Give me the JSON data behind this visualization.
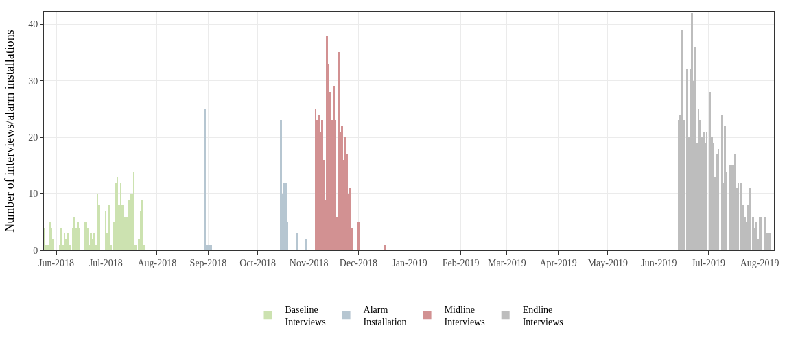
{
  "chart_data": {
    "type": "bar",
    "ylabel": "Number of interviews/alarm installations",
    "ylim": [
      0,
      42.2
    ],
    "yticks": [
      0,
      10,
      20,
      30,
      40
    ],
    "xlim": [
      "2018-05-24T12:00",
      "2019-08-09T16:00"
    ],
    "xticks": [
      {
        "value": "2018-06",
        "label": "Jun-2018"
      },
      {
        "value": "2018-07",
        "label": "Jul-2018"
      },
      {
        "value": "2018-08",
        "label": "Aug-2018"
      },
      {
        "value": "2018-09",
        "label": "Sep-2018"
      },
      {
        "value": "2018-10",
        "label": "Oct-2018"
      },
      {
        "value": "2018-11",
        "label": "Nov-2018"
      },
      {
        "value": "2018-12",
        "label": "Dec-2018"
      },
      {
        "value": "2019-01",
        "label": "Jan-2019"
      },
      {
        "value": "2019-02",
        "label": "Feb-2019"
      },
      {
        "value": "2019-03",
        "label": "Mar-2019"
      },
      {
        "value": "2019-04",
        "label": "Apr-2019"
      },
      {
        "value": "2019-05",
        "label": "May-2019"
      },
      {
        "value": "2019-06",
        "label": "Jun-2019"
      },
      {
        "value": "2019-07",
        "label": "Jul-2019"
      },
      {
        "value": "2019-08",
        "label": "Aug-2019"
      }
    ],
    "grid": true,
    "legend": "bottom",
    "series": [
      {
        "name": "Baseline Interviews",
        "color": "#cce2b0",
        "x": [
          "2018-05-25",
          "2018-05-26",
          "2018-05-27",
          "2018-05-28",
          "2018-05-29",
          "2018-05-30",
          "2018-06-03",
          "2018-06-04",
          "2018-06-05",
          "2018-06-06",
          "2018-06-07",
          "2018-06-08",
          "2018-06-09",
          "2018-06-11",
          "2018-06-12",
          "2018-06-13",
          "2018-06-14",
          "2018-06-15",
          "2018-06-18",
          "2018-06-19",
          "2018-06-20",
          "2018-06-21",
          "2018-06-22",
          "2018-06-23",
          "2018-06-24",
          "2018-06-25",
          "2018-06-26",
          "2018-06-27",
          "2018-07-01",
          "2018-07-02",
          "2018-07-03",
          "2018-07-04",
          "2018-07-06",
          "2018-07-07",
          "2018-07-08",
          "2018-07-09",
          "2018-07-10",
          "2018-07-11",
          "2018-07-12",
          "2018-07-13",
          "2018-07-14",
          "2018-07-15",
          "2018-07-16",
          "2018-07-17",
          "2018-07-18",
          "2018-07-19",
          "2018-07-21",
          "2018-07-22",
          "2018-07-23",
          "2018-07-24"
        ],
        "values": [
          4,
          1,
          1,
          5,
          4,
          2,
          1,
          4,
          1,
          3,
          2,
          3,
          1,
          4,
          6,
          4,
          5,
          4,
          5,
          5,
          4,
          1,
          3,
          2,
          3,
          1,
          10,
          8,
          7,
          3,
          8,
          1,
          5,
          12,
          13,
          8,
          12,
          8,
          6,
          6,
          6,
          9,
          10,
          10,
          14,
          1,
          2,
          7,
          9,
          1
        ]
      },
      {
        "name": "Alarm Installation",
        "color": "#b6c6d1",
        "x": [
          "2018-08-30",
          "2018-08-31",
          "2018-09-01",
          "2018-09-02",
          "2018-09-03",
          "2018-10-15",
          "2018-10-16",
          "2018-10-17",
          "2018-10-18",
          "2018-10-19",
          "2018-10-25",
          "2018-10-30"
        ],
        "values": [
          25,
          1,
          1,
          1,
          1,
          23,
          10,
          12,
          12,
          5,
          3,
          2
        ]
      },
      {
        "name": "Midline Interviews",
        "color": "#d29192",
        "x": [
          "2018-11-05",
          "2018-11-06",
          "2018-11-07",
          "2018-11-08",
          "2018-11-09",
          "2018-11-10",
          "2018-11-11",
          "2018-11-12",
          "2018-11-13",
          "2018-11-14",
          "2018-11-15",
          "2018-11-16",
          "2018-11-17",
          "2018-11-18",
          "2018-11-19",
          "2018-11-20",
          "2018-11-21",
          "2018-11-22",
          "2018-11-23",
          "2018-11-24",
          "2018-11-25",
          "2018-11-26",
          "2018-11-27",
          "2018-11-28",
          "2018-12-01",
          "2018-12-17"
        ],
        "values": [
          25,
          23,
          24,
          21,
          23,
          16,
          9,
          38,
          33,
          28,
          23,
          29,
          23,
          6,
          35,
          21,
          22,
          16,
          20,
          17,
          10,
          11,
          4,
          null,
          5,
          1
        ]
      },
      {
        "name": "Endline Interviews",
        "color": "#bdbdbd",
        "x": [
          "2019-06-13",
          "2019-06-14",
          "2019-06-15",
          "2019-06-16",
          "2019-06-18",
          "2019-06-19",
          "2019-06-20",
          "2019-06-21",
          "2019-06-22",
          "2019-06-23",
          "2019-06-24",
          "2019-06-25",
          "2019-06-26",
          "2019-06-27",
          "2019-06-28",
          "2019-06-29",
          "2019-06-30",
          "2019-07-02",
          "2019-07-03",
          "2019-07-04",
          "2019-07-05",
          "2019-07-06",
          "2019-07-07",
          "2019-07-09",
          "2019-07-10",
          "2019-07-11",
          "2019-07-12",
          "2019-07-14",
          "2019-07-15",
          "2019-07-16",
          "2019-07-17",
          "2019-07-18",
          "2019-07-19",
          "2019-07-21",
          "2019-07-22",
          "2019-07-23",
          "2019-07-24",
          "2019-07-25",
          "2019-07-26",
          "2019-07-28",
          "2019-07-29",
          "2019-07-30",
          "2019-07-31",
          "2019-08-01",
          "2019-08-02",
          "2019-08-04",
          "2019-08-05",
          "2019-08-06",
          "2019-08-07"
        ],
        "values": [
          23,
          24,
          39,
          23,
          32,
          20,
          32,
          42,
          30,
          36,
          19,
          25,
          23,
          20,
          21,
          19,
          21,
          28,
          20,
          19,
          13,
          17,
          18,
          24,
          12,
          22,
          14,
          15,
          15,
          15,
          17,
          11,
          12,
          12,
          8,
          6,
          5,
          8,
          11,
          6,
          4,
          5,
          2,
          6,
          6,
          6,
          3,
          3,
          3
        ]
      }
    ]
  }
}
